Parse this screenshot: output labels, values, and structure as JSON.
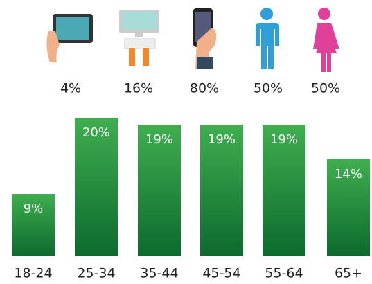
{
  "icon_stats": [
    {
      "value": 4,
      "value_label": "4%"
    },
    {
      "value": 16,
      "value_label": "16%"
    },
    {
      "value": 80,
      "value_label": "80%"
    },
    {
      "value": 50,
      "value_label": "50%"
    },
    {
      "value": 50,
      "value_label": "50%"
    }
  ],
  "chart_data": {
    "type": "bar",
    "categories": [
      "18-24",
      "25-34",
      "35-44",
      "45-54",
      "55-64",
      "65+"
    ],
    "values": [
      9,
      20,
      19,
      19,
      19,
      14
    ],
    "value_labels": [
      "9%",
      "20%",
      "19%",
      "19%",
      "19%",
      "14%"
    ],
    "color": "#1e8a3c"
  }
}
